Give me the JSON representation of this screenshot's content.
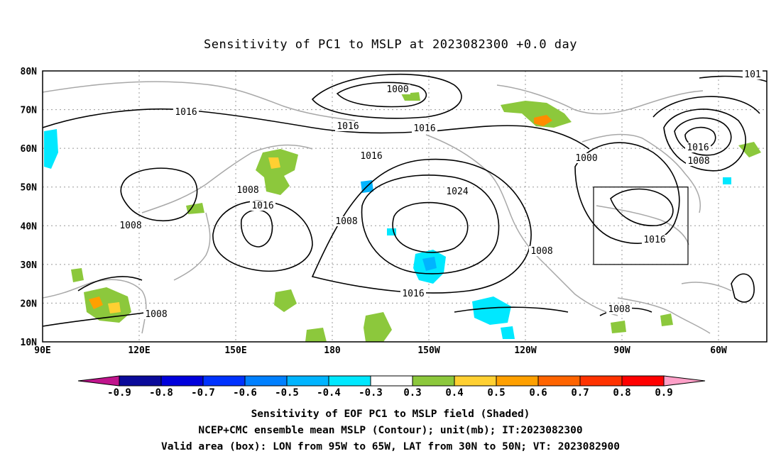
{
  "title": "Sensitivity of PC1 to MSLP at 2023082300 +0.0 day",
  "lat_ticks": [
    "80N",
    "70N",
    "60N",
    "50N",
    "40N",
    "30N",
    "20N",
    "10N"
  ],
  "lon_ticks": [
    "90E",
    "120E",
    "150E",
    "180",
    "150W",
    "120W",
    "90W",
    "60W"
  ],
  "contour_labels": [
    "1000",
    "1016",
    "1016",
    "1016",
    "1016",
    "1008",
    "1008",
    "1024",
    "1016",
    "1008",
    "1016",
    "1008",
    "1000",
    "1008",
    "1016",
    "1008",
    "101",
    "1016",
    "1008"
  ],
  "colorbar": {
    "labels": [
      "-0.9",
      "-0.8",
      "-0.7",
      "-0.6",
      "-0.5",
      "-0.4",
      "-0.3",
      "0.3",
      "0.4",
      "0.5",
      "0.6",
      "0.7",
      "0.8",
      "0.9"
    ],
    "colors": [
      "#0a0a9a",
      "#0000dc",
      "#0032ff",
      "#0080ff",
      "#00b4ff",
      "#00e8ff",
      "#ffffff",
      "#8cc83c",
      "#ffd032",
      "#ffa000",
      "#ff6400",
      "#ff3200",
      "#ff0000"
    ],
    "low_end_color": "#c0148c",
    "high_end_color": "#ffa0c8"
  },
  "captions": [
    "Sensitivity of EOF PC1 to MSLP field (Shaded)",
    "NCEP+CMC ensemble mean MSLP (Contour); unit(mb); IT:2023082300",
    "Valid area (box): LON from 95W to 65W, LAT from 30N to 50N; VT: 2023082900"
  ],
  "map": {
    "lon_range": [
      "90E",
      "45W"
    ],
    "lat_range": [
      "10N",
      "80N"
    ],
    "valid_box": {
      "lon": [
        "95W",
        "65W"
      ],
      "lat": [
        "30N",
        "50N"
      ]
    },
    "grid": "dotted"
  }
}
